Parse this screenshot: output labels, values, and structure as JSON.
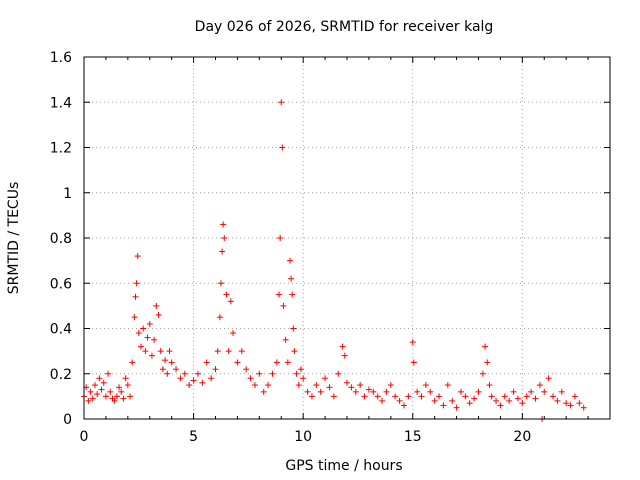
{
  "chart_data": {
    "type": "scatter",
    "title": "Day 026 of 2026, SRMTID for receiver kalg",
    "xlabel": "GPS time / hours",
    "ylabel": "SRMTID / TECUs",
    "xlim": [
      0,
      24
    ],
    "ylim": [
      0,
      1.6
    ],
    "grid": true,
    "marker": "+",
    "color": "#ff0000",
    "x_ticks": [
      0,
      5,
      10,
      15,
      20
    ],
    "x_tick_labels": [
      "0",
      "5",
      "10",
      "15",
      "20"
    ],
    "y_ticks": [
      0,
      0.2,
      0.4,
      0.6,
      0.8,
      1.0,
      1.2,
      1.4,
      1.6
    ],
    "y_tick_labels": [
      "0",
      "0.2",
      "0.4",
      "0.6",
      "0.8",
      "1",
      "1.2",
      "1.4",
      "1.6"
    ],
    "series": [
      {
        "name": "SRMTID",
        "x": [
          0.0,
          0.1,
          0.2,
          0.3,
          0.4,
          0.5,
          0.6,
          0.7,
          0.8,
          0.9,
          1.0,
          1.1,
          1.2,
          1.3,
          1.4,
          1.5,
          1.6,
          1.7,
          1.8,
          1.9,
          2.0,
          2.1,
          2.2,
          2.3,
          2.35,
          2.4,
          2.45,
          2.5,
          2.6,
          2.7,
          2.8,
          2.9,
          3.0,
          3.1,
          3.2,
          3.3,
          3.4,
          3.5,
          3.6,
          3.7,
          3.8,
          3.9,
          4.0,
          4.2,
          4.4,
          4.6,
          4.8,
          5.0,
          5.2,
          5.4,
          5.6,
          5.8,
          6.0,
          6.1,
          6.2,
          6.25,
          6.3,
          6.35,
          6.4,
          6.5,
          6.6,
          6.7,
          6.8,
          7.0,
          7.2,
          7.4,
          7.6,
          7.8,
          8.0,
          8.2,
          8.4,
          8.6,
          8.8,
          8.9,
          8.95,
          9.0,
          9.05,
          9.1,
          9.2,
          9.3,
          9.4,
          9.45,
          9.5,
          9.55,
          9.6,
          9.7,
          9.8,
          9.9,
          10.0,
          10.2,
          10.4,
          10.6,
          10.8,
          11.0,
          11.2,
          11.4,
          11.6,
          11.8,
          11.9,
          12.0,
          12.2,
          12.4,
          12.6,
          12.8,
          13.0,
          13.2,
          13.4,
          13.6,
          13.8,
          14.0,
          14.2,
          14.4,
          14.6,
          14.8,
          15.0,
          15.05,
          15.2,
          15.4,
          15.6,
          15.8,
          16.0,
          16.2,
          16.4,
          16.6,
          16.8,
          17.0,
          17.2,
          17.4,
          17.6,
          17.8,
          18.0,
          18.2,
          18.3,
          18.4,
          18.5,
          18.6,
          18.8,
          19.0,
          19.2,
          19.4,
          19.6,
          19.8,
          20.0,
          20.2,
          20.4,
          20.6,
          20.8,
          20.9,
          21.0,
          21.2,
          21.4,
          21.6,
          21.8,
          22.0,
          22.2,
          22.4,
          22.6,
          22.8
        ],
        "y": [
          0.1,
          0.14,
          0.08,
          0.12,
          0.09,
          0.15,
          0.11,
          0.18,
          0.13,
          0.16,
          0.1,
          0.2,
          0.12,
          0.09,
          0.08,
          0.1,
          0.14,
          0.12,
          0.09,
          0.18,
          0.15,
          0.1,
          0.25,
          0.45,
          0.54,
          0.6,
          0.72,
          0.38,
          0.32,
          0.4,
          0.3,
          0.36,
          0.42,
          0.28,
          0.35,
          0.5,
          0.46,
          0.3,
          0.22,
          0.26,
          0.2,
          0.3,
          0.25,
          0.22,
          0.18,
          0.2,
          0.15,
          0.17,
          0.2,
          0.16,
          0.25,
          0.18,
          0.22,
          0.3,
          0.45,
          0.6,
          0.74,
          0.86,
          0.8,
          0.55,
          0.3,
          0.52,
          0.38,
          0.25,
          0.3,
          0.22,
          0.18,
          0.15,
          0.2,
          0.12,
          0.15,
          0.2,
          0.25,
          0.55,
          0.8,
          1.4,
          1.2,
          0.5,
          0.35,
          0.25,
          0.7,
          0.62,
          0.55,
          0.4,
          0.3,
          0.2,
          0.15,
          0.22,
          0.18,
          0.12,
          0.1,
          0.15,
          0.12,
          0.18,
          0.14,
          0.1,
          0.2,
          0.32,
          0.28,
          0.16,
          0.14,
          0.12,
          0.15,
          0.1,
          0.13,
          0.12,
          0.1,
          0.08,
          0.12,
          0.15,
          0.1,
          0.08,
          0.06,
          0.1,
          0.34,
          0.25,
          0.12,
          0.1,
          0.15,
          0.12,
          0.08,
          0.1,
          0.06,
          0.15,
          0.08,
          0.05,
          0.12,
          0.1,
          0.07,
          0.09,
          0.12,
          0.2,
          0.32,
          0.25,
          0.15,
          0.1,
          0.08,
          0.06,
          0.1,
          0.08,
          0.12,
          0.09,
          0.07,
          0.1,
          0.12,
          0.09,
          0.15,
          0.0,
          0.12,
          0.18,
          0.1,
          0.08,
          0.12,
          0.07,
          0.06,
          0.1,
          0.07,
          0.05
        ]
      }
    ]
  }
}
